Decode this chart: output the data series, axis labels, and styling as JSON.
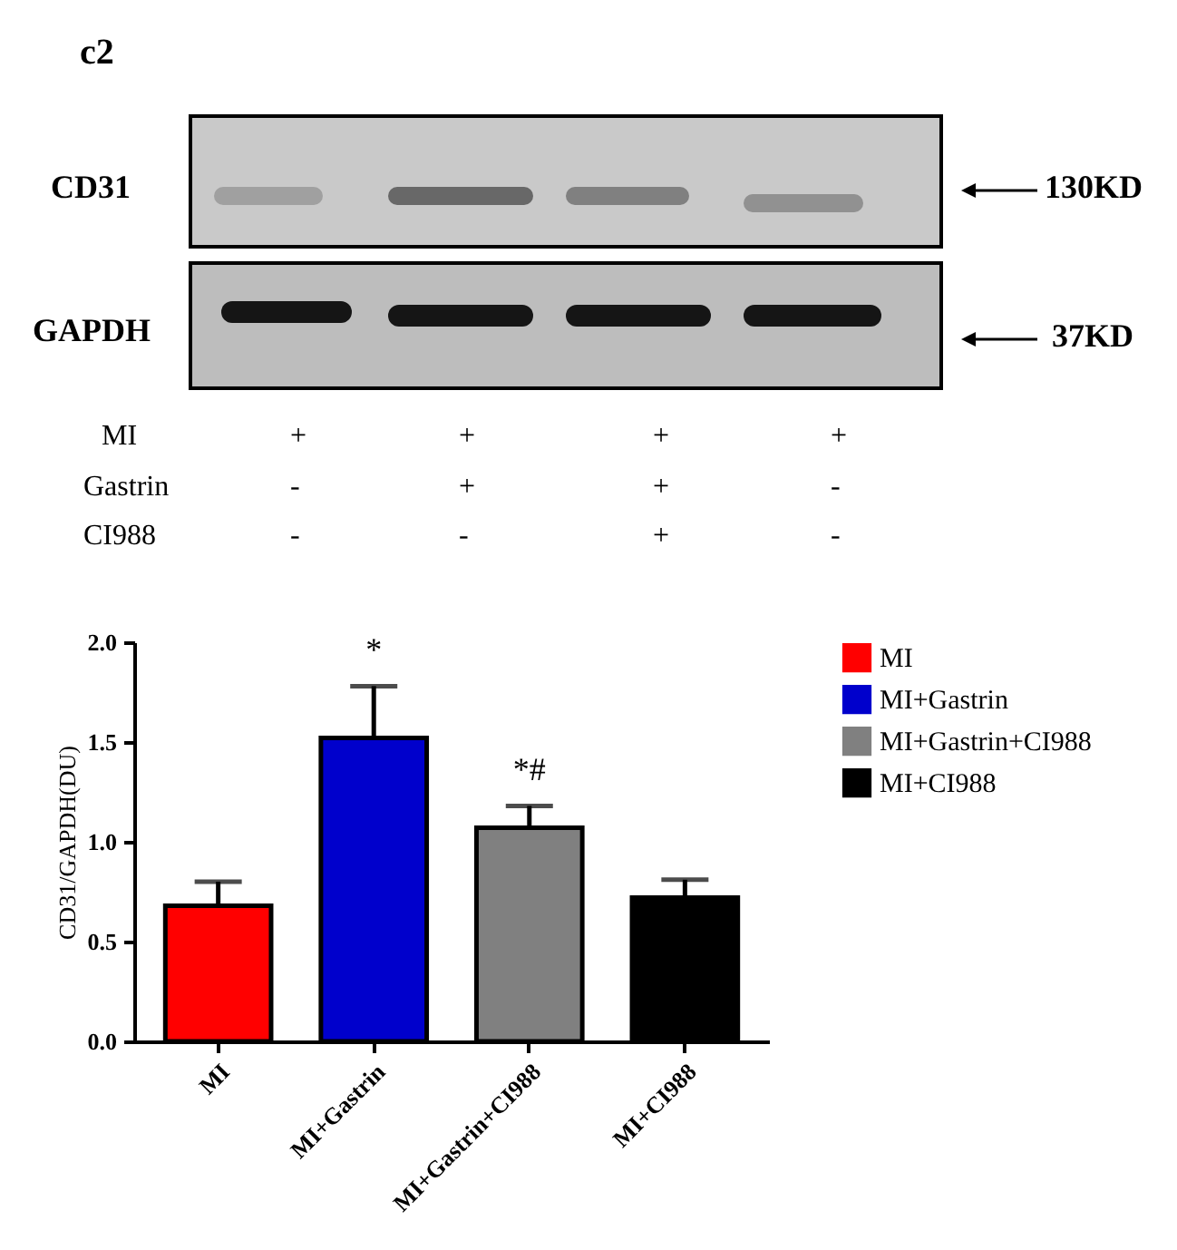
{
  "chart_data": {
    "type": "bar",
    "ylabel": "CD31/GAPDH(DU)",
    "grid": false,
    "categories": [
      "MI",
      "MI+Gastrin",
      "MI+Gastrin+CI988",
      "MI+CI988"
    ],
    "series": [
      {
        "name": "MI",
        "color": "#ff0000",
        "values": [
          0.68,
          null,
          null,
          null
        ],
        "errors": [
          0.12,
          null,
          null,
          null
        ]
      },
      {
        "name": "MI+Gastrin",
        "color": "#0000cc",
        "values": [
          null,
          1.52,
          null,
          null
        ],
        "errors": [
          null,
          0.26,
          null,
          null
        ]
      },
      {
        "name": "MI+Gastrin+CI988",
        "color": "#808080",
        "values": [
          null,
          null,
          1.07,
          null
        ],
        "errors": [
          null,
          null,
          0.11,
          null
        ]
      },
      {
        "name": "MI+CI988",
        "color": "#000000",
        "values": [
          null,
          null,
          null,
          0.72
        ],
        "errors": [
          null,
          null,
          null,
          0.09
        ]
      }
    ],
    "ylim": [
      0,
      2
    ],
    "yticks": [
      {
        "value": 0,
        "label": "0.0"
      },
      {
        "value": 0.5,
        "label": "0.5"
      },
      {
        "value": 1,
        "label": "1.0"
      },
      {
        "value": 1.5,
        "label": "1.5"
      },
      {
        "value": 2,
        "label": "2.0"
      }
    ],
    "legend": "top right",
    "annotations": [
      "c2",
      "CD31",
      "GAPDH",
      "130KD",
      "37KD",
      "MI",
      "Gastrin",
      "CI988",
      "+",
      "+",
      "+",
      "+",
      "-",
      "+",
      "+",
      "-",
      "-",
      "-",
      "+",
      "-",
      {
        "text": "*",
        "x": "MI+Gastrin",
        "y": 1.78
      },
      {
        "text": "*#",
        "x": "MI+Gastrin+CI988",
        "y": 1.18
      }
    ]
  }
}
